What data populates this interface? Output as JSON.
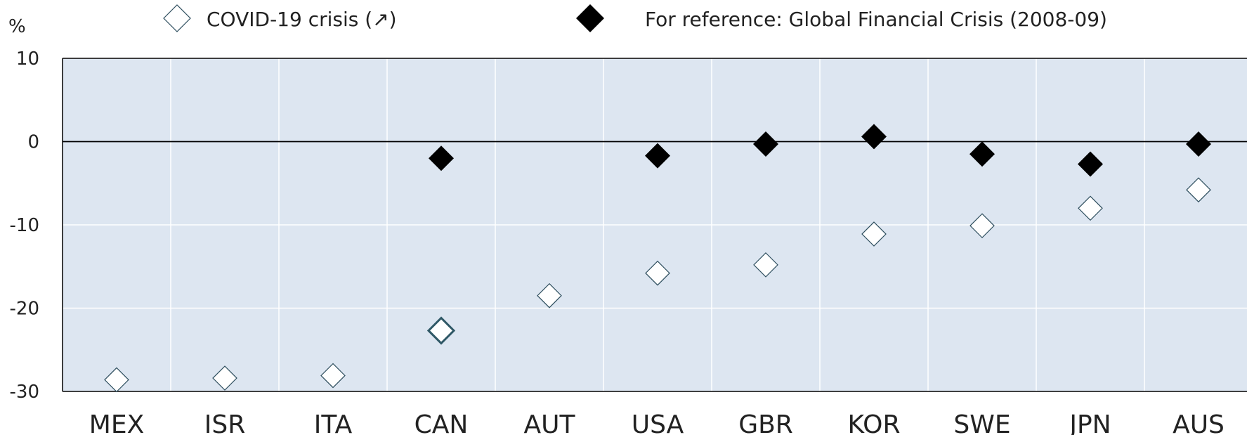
{
  "chart_data": {
    "type": "scatter",
    "unit_label": "%",
    "categories": [
      "MEX",
      "ISR",
      "ITA",
      "CAN",
      "AUT",
      "USA",
      "GBR",
      "KOR",
      "SWE",
      "JPN",
      "AUS"
    ],
    "ylim": [
      -30,
      10
    ],
    "yticks": [
      10,
      0,
      -10,
      -20,
      -30
    ],
    "grid": true,
    "legend_position": "top",
    "series": [
      {
        "name": "COVID-19 crisis (↗)",
        "marker": "open-diamond",
        "values": [
          -28.6,
          -28.4,
          -28.1,
          -22.7,
          -18.5,
          -15.8,
          -14.8,
          -11.1,
          -10.1,
          -8.0,
          -5.8
        ]
      },
      {
        "name": "For reference: Global Financial Crisis (2008-09)",
        "marker": "filled-diamond",
        "values": [
          null,
          null,
          null,
          -2.0,
          null,
          -1.7,
          -0.3,
          0.6,
          -1.5,
          -2.7,
          -0.3
        ]
      }
    ],
    "highlight_category": "CAN"
  },
  "colors": {
    "plot_background": "#dde6f1",
    "gridline": "#ffffff",
    "zero_line": "#000000",
    "covid_marker_fill": "#ffffff",
    "covid_marker_stroke": "#2f4f5f",
    "gfc_marker_fill": "#000000",
    "highlight_stroke": "#2f5866"
  }
}
